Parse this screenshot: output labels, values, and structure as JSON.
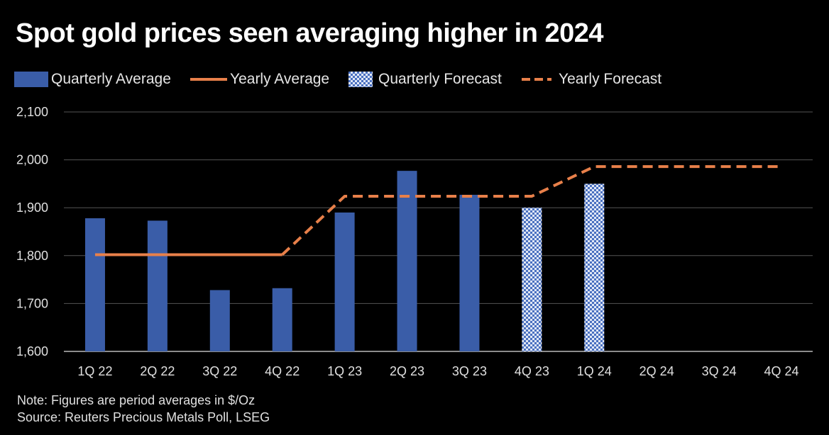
{
  "title": "Spot gold prices seen averaging higher in 2024",
  "legend": {
    "quarterly_average": "Quarterly Average",
    "yearly_average": "Yearly Average",
    "quarterly_forecast": "Quarterly Forecast",
    "yearly_forecast": "Yearly Forecast"
  },
  "notes": {
    "note": "Note: Figures are period averages in $/Oz",
    "source": "Source: Reuters Precious Metals Poll, LSEG"
  },
  "colors": {
    "bar": "#3a5da8",
    "forecast_bar": "#6f8fd0",
    "line": "#e8804a",
    "grid": "#555555"
  },
  "chart_data": {
    "type": "bar",
    "title": "Spot gold prices seen averaging higher in 2024",
    "xlabel": "",
    "ylabel": "$/Oz",
    "ylim": [
      1600,
      2100
    ],
    "yticks": [
      1600,
      1700,
      1800,
      1900,
      2000,
      2100
    ],
    "ytick_labels": [
      "1,600",
      "1,700",
      "1,800",
      "1,900",
      "2,000",
      "2,100"
    ],
    "categories": [
      "1Q 22",
      "2Q 22",
      "3Q 22",
      "4Q 22",
      "1Q 23",
      "2Q 23",
      "3Q 23",
      "4Q 23",
      "1Q 24",
      "2Q 24",
      "3Q 24",
      "4Q 24"
    ],
    "series": [
      {
        "name": "Quarterly Average",
        "kind": "bar",
        "values": [
          1878,
          1873,
          1728,
          1732,
          1890,
          1977,
          1927,
          null,
          null,
          null,
          null,
          null
        ]
      },
      {
        "name": "Quarterly Forecast",
        "kind": "bar-pattern",
        "values": [
          null,
          null,
          null,
          null,
          null,
          null,
          null,
          1900,
          1950,
          null,
          null,
          null
        ]
      },
      {
        "name": "Yearly Average",
        "kind": "line",
        "values": [
          1802,
          1802,
          1802,
          1802,
          null,
          null,
          null,
          null,
          null,
          null,
          null,
          null
        ]
      },
      {
        "name": "Yearly Forecast",
        "kind": "dashed-line",
        "values": [
          null,
          null,
          null,
          1802,
          1924,
          1924,
          1924,
          1924,
          1986,
          1986,
          1986,
          1986
        ]
      }
    ],
    "legend_position": "top"
  }
}
